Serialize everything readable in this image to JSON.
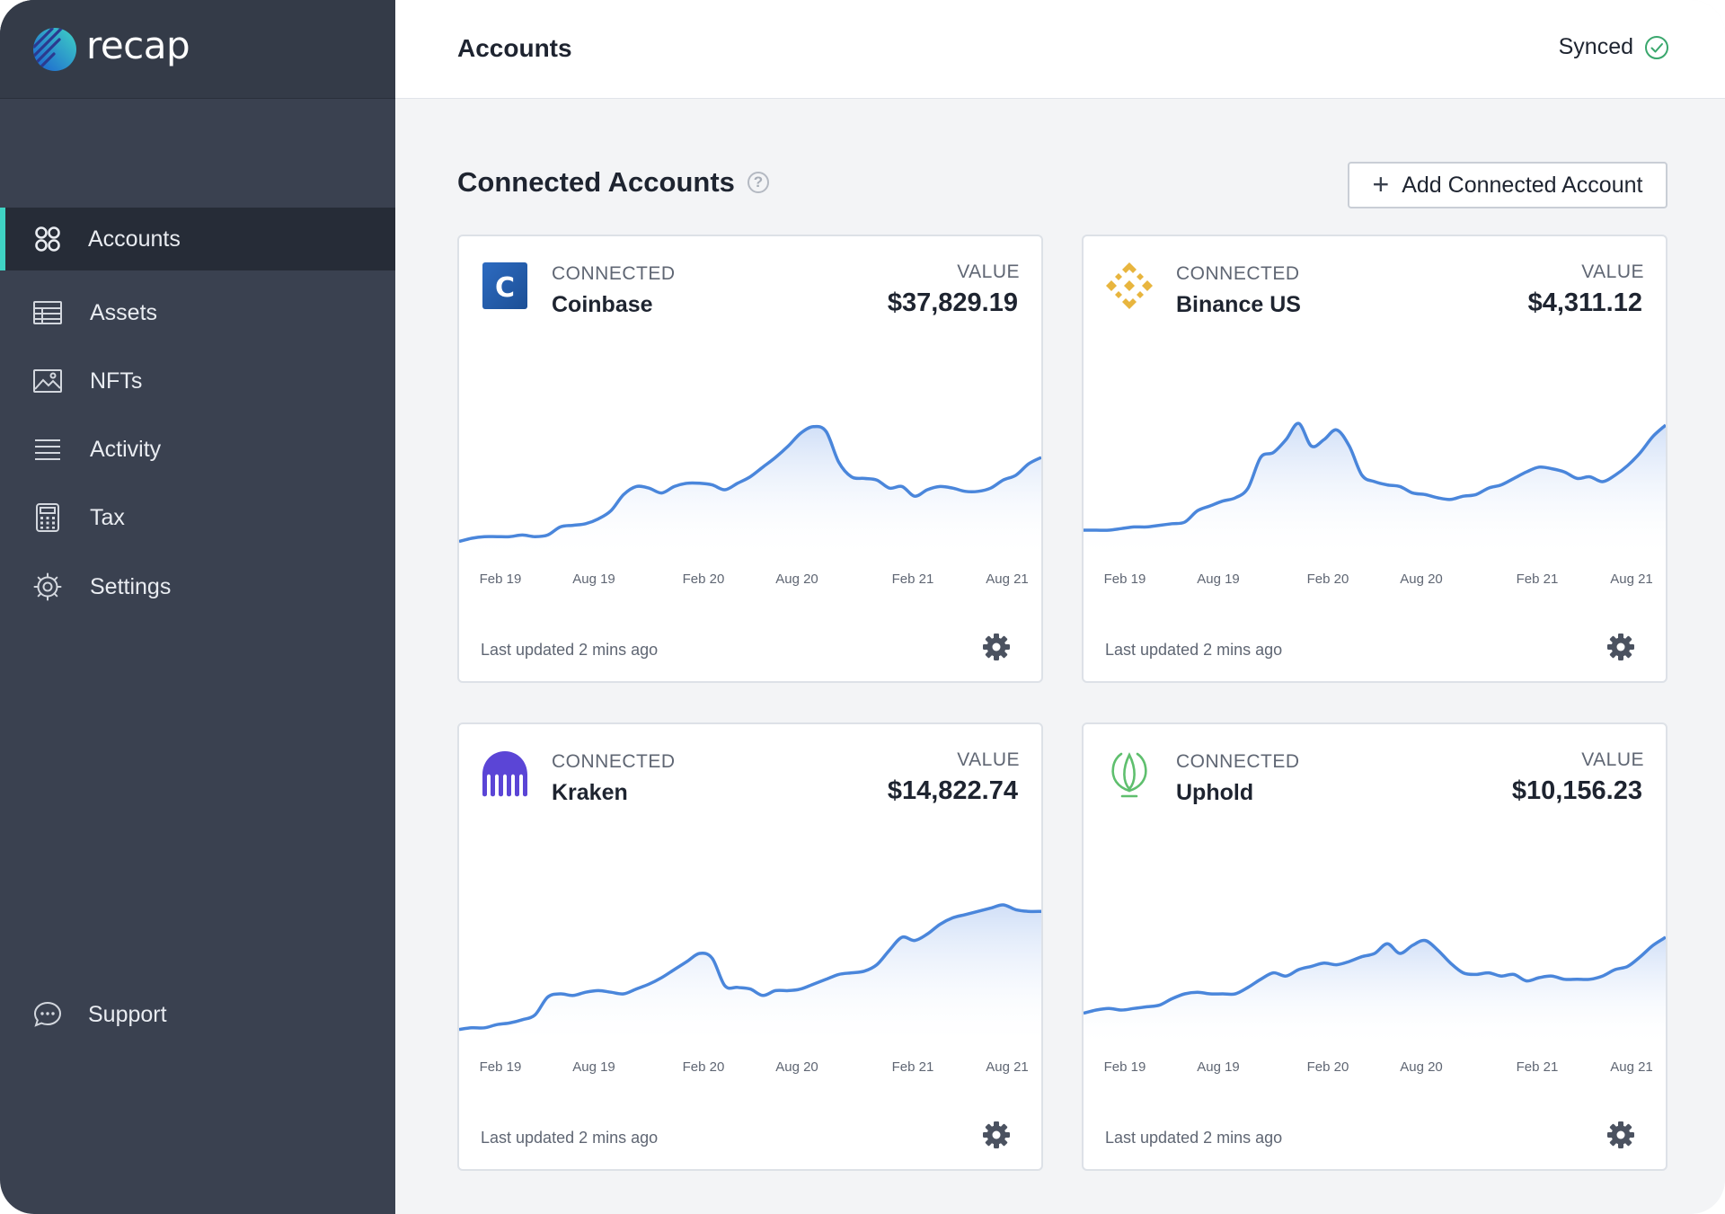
{
  "app": {
    "brand_name": "recap"
  },
  "sidebar": {
    "items": [
      {
        "label": "Accounts",
        "icon": "grid-icon",
        "active": true
      },
      {
        "label": "Assets",
        "icon": "table-icon",
        "active": false
      },
      {
        "label": "NFTs",
        "icon": "image-icon",
        "active": false
      },
      {
        "label": "Activity",
        "icon": "list-icon",
        "active": false
      },
      {
        "label": "Tax",
        "icon": "calculator-icon",
        "active": false
      },
      {
        "label": "Settings",
        "icon": "gear-icon",
        "active": false
      }
    ],
    "support": {
      "label": "Support",
      "icon": "chat-icon"
    }
  },
  "header": {
    "title": "Accounts",
    "sync_status": "Synced"
  },
  "section": {
    "title": "Connected Accounts",
    "add_button_label": "Add Connected Account"
  },
  "colors": {
    "sidebar_bg": "#3a4150",
    "active_accent": "#3fd3c4",
    "line": "#4a86db",
    "synced": "#3aa76d"
  },
  "cards": [
    {
      "status": "CONNECTED",
      "name": "Coinbase",
      "value_label": "VALUE",
      "value": "$37,829.19",
      "logo": "coinbase-logo",
      "x_ticks": [
        "Feb 19",
        "Aug 19",
        "Feb 20",
        "Aug 20",
        "Feb 21",
        "Aug 21"
      ],
      "updated": "Last updated 2 mins ago",
      "trend": [
        0.03,
        0.05,
        0.06,
        0.06,
        0.06,
        0.07,
        0.06,
        0.07,
        0.12,
        0.13,
        0.14,
        0.17,
        0.22,
        0.32,
        0.37,
        0.36,
        0.33,
        0.37,
        0.39,
        0.39,
        0.38,
        0.35,
        0.39,
        0.43,
        0.49,
        0.55,
        0.62,
        0.7,
        0.74,
        0.71,
        0.52,
        0.43,
        0.42,
        0.41,
        0.36,
        0.37,
        0.31,
        0.35,
        0.37,
        0.36,
        0.34,
        0.34,
        0.36,
        0.41,
        0.44,
        0.51,
        0.55
      ]
    },
    {
      "status": "CONNECTED",
      "name": "Binance US",
      "value_label": "VALUE",
      "value": "$4,311.12",
      "logo": "binance-logo",
      "x_ticks": [
        "Feb 19",
        "Aug 19",
        "Feb 20",
        "Aug 20",
        "Feb 21",
        "Aug 21"
      ],
      "updated": "Last updated 2 mins ago",
      "trend": [
        0.1,
        0.1,
        0.1,
        0.11,
        0.12,
        0.12,
        0.13,
        0.14,
        0.15,
        0.22,
        0.25,
        0.28,
        0.3,
        0.36,
        0.55,
        0.58,
        0.66,
        0.76,
        0.62,
        0.66,
        0.72,
        0.62,
        0.44,
        0.4,
        0.38,
        0.37,
        0.33,
        0.32,
        0.3,
        0.29,
        0.31,
        0.32,
        0.36,
        0.38,
        0.42,
        0.46,
        0.49,
        0.48,
        0.46,
        0.42,
        0.43,
        0.4,
        0.44,
        0.5,
        0.58,
        0.68,
        0.75
      ]
    },
    {
      "status": "CONNECTED",
      "name": "Kraken",
      "value_label": "VALUE",
      "value": "$14,822.74",
      "logo": "kraken-logo",
      "x_ticks": [
        "Feb 19",
        "Aug 19",
        "Feb 20",
        "Aug 20",
        "Feb 21",
        "Aug 21"
      ],
      "updated": "Last updated 2 mins ago",
      "trend": [
        0.03,
        0.04,
        0.04,
        0.06,
        0.07,
        0.09,
        0.12,
        0.23,
        0.25,
        0.24,
        0.26,
        0.27,
        0.26,
        0.25,
        0.28,
        0.31,
        0.35,
        0.4,
        0.45,
        0.5,
        0.47,
        0.3,
        0.29,
        0.28,
        0.24,
        0.27,
        0.27,
        0.28,
        0.31,
        0.34,
        0.37,
        0.38,
        0.39,
        0.43,
        0.52,
        0.6,
        0.58,
        0.62,
        0.68,
        0.72,
        0.74,
        0.76,
        0.78,
        0.8,
        0.77,
        0.76,
        0.76
      ]
    },
    {
      "status": "CONNECTED",
      "name": "Uphold",
      "value_label": "VALUE",
      "value": "$10,156.23",
      "logo": "uphold-logo",
      "x_ticks": [
        "Feb 19",
        "Aug 19",
        "Feb 20",
        "Aug 20",
        "Feb 21",
        "Aug 21"
      ],
      "updated": "Last updated 2 mins ago",
      "trend": [
        0.13,
        0.15,
        0.16,
        0.15,
        0.16,
        0.17,
        0.18,
        0.22,
        0.25,
        0.26,
        0.25,
        0.25,
        0.25,
        0.29,
        0.34,
        0.38,
        0.36,
        0.4,
        0.42,
        0.44,
        0.43,
        0.45,
        0.48,
        0.5,
        0.56,
        0.5,
        0.55,
        0.58,
        0.52,
        0.44,
        0.38,
        0.37,
        0.38,
        0.36,
        0.37,
        0.33,
        0.35,
        0.36,
        0.34,
        0.34,
        0.34,
        0.36,
        0.4,
        0.42,
        0.48,
        0.55,
        0.6
      ]
    }
  ]
}
